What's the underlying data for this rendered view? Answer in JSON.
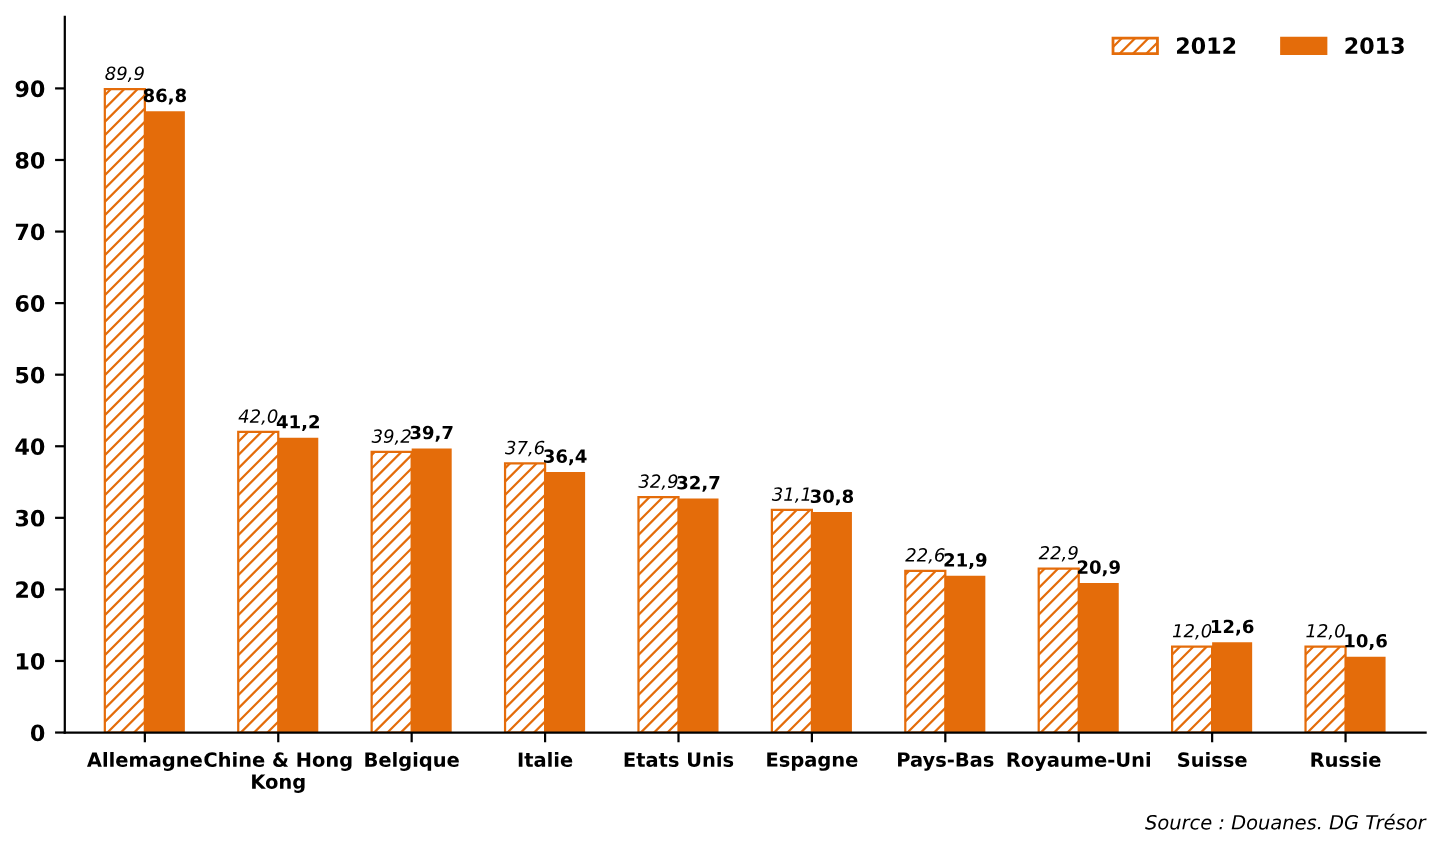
{
  "chart_data": {
    "type": "bar",
    "categories": [
      "Allemagne",
      "Chine & Hong Kong",
      "Belgique",
      "Italie",
      "Etats Unis",
      "Espagne",
      "Pays-Bas",
      "Royaume-Uni",
      "Suisse",
      "Russie"
    ],
    "series": [
      {
        "name": "2012",
        "color": "#e46c0a",
        "values": [
          89.9,
          42.0,
          39.2,
          37.6,
          32.9,
          31.1,
          22.6,
          22.9,
          12.0,
          12.0
        ],
        "value_labels": [
          "89,9",
          "42,0",
          "39,2",
          "37,6",
          "32,9",
          "31,1",
          "22,6",
          "22,9",
          "12,0",
          "12,0"
        ]
      },
      {
        "name": "2013",
        "color": "#e46c0a",
        "values": [
          86.8,
          41.2,
          39.7,
          36.4,
          32.7,
          30.8,
          21.9,
          20.9,
          12.6,
          10.6
        ],
        "value_labels": [
          "86,8",
          "41,2",
          "39,7",
          "36,4",
          "32,7",
          "30,8",
          "21,9",
          "20,9",
          "12,6",
          "10,6"
        ]
      }
    ],
    "ylim": [
      0,
      100
    ],
    "yticks": [
      0,
      10,
      20,
      30,
      40,
      50,
      60,
      70,
      80,
      90
    ],
    "grid": false,
    "legend": "top right",
    "annotations": [
      "Source : Douanes. DG Trésor"
    ]
  }
}
